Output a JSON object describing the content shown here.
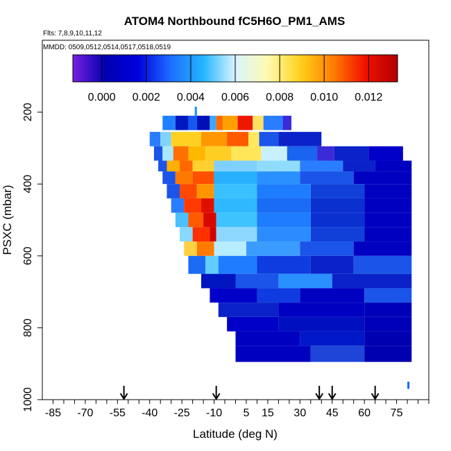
{
  "chart_data": {
    "type": "heatmap",
    "title": "ATOM4 Northbound fC5H6O_PM1_AMS",
    "subtitle_flights": "Flts: 7,8,9,10,11,12",
    "subtitle_dates": "MMDD: 0509,0512,0514,0517,0518,0519",
    "xlabel": "Latitude (deg N)",
    "ylabel": "PSXC (mbar)",
    "xlim": [
      -90,
      90
    ],
    "ylim": [
      1000,
      0
    ],
    "x_ticks": [
      "-85",
      "-70",
      "-55",
      "-40",
      "-25",
      "-10",
      "5",
      "15",
      "30",
      "45",
      "60",
      "75"
    ],
    "x_tick_values": [
      -85,
      -70,
      -55,
      -40,
      -25,
      -10,
      5,
      15,
      30,
      45,
      60,
      75
    ],
    "y_ticks": [
      "200",
      "400",
      "600",
      "800",
      "1000"
    ],
    "y_tick_values": [
      200,
      400,
      600,
      800,
      1000
    ],
    "colorbar": {
      "range": [
        -0.0013,
        0.0133
      ],
      "ticks": [
        "0.000",
        "0.002",
        "0.004",
        "0.006",
        "0.008",
        "0.010",
        "0.012"
      ],
      "tick_values": [
        0.0,
        0.002,
        0.004,
        0.006,
        0.008,
        0.01,
        0.012
      ],
      "gradient": [
        "#7a1fe0",
        "#0000b0",
        "#0000dd",
        "#1e6cff",
        "#22b4ff",
        "#d8f4ff",
        "#fffbb0",
        "#ffd21e",
        "#ff7f00",
        "#f21000",
        "#b00000"
      ]
    },
    "arrows_latitude": [
      -52,
      -9,
      39,
      45,
      65
    ],
    "bands": [
      {
        "p": [
          185,
          210
        ],
        "segments": [
          {
            "x0": -19,
            "x1": -18,
            "c": "#1e90ff"
          }
        ]
      },
      {
        "p": [
          210,
          250
        ],
        "segments": [
          {
            "x0": -34,
            "x1": -28,
            "c": "#2080ff"
          },
          {
            "x0": -28,
            "x1": -22,
            "c": "#0018c0"
          },
          {
            "x0": -22,
            "x1": -18,
            "c": "#1458f0"
          },
          {
            "x0": -18,
            "x1": -12,
            "c": "#0010b8"
          },
          {
            "x0": -12,
            "x1": -9,
            "c": "#3fa6ff"
          },
          {
            "x0": -9,
            "x1": -6,
            "c": "#ff6a00"
          },
          {
            "x0": -6,
            "x1": 1,
            "c": "#ffa000"
          },
          {
            "x0": 1,
            "x1": 8,
            "c": "#ee1800"
          },
          {
            "x0": 8,
            "x1": 13,
            "c": "#ffe060"
          },
          {
            "x0": 13,
            "x1": 22,
            "c": "#2a7dff"
          },
          {
            "x0": 22,
            "x1": 26,
            "c": "#3a2ad8"
          }
        ]
      },
      {
        "p": [
          255,
          295
        ],
        "segments": [
          {
            "x0": -40,
            "x1": -35,
            "c": "#2a7dff"
          },
          {
            "x0": -35,
            "x1": -30,
            "c": "#7fd4ff"
          },
          {
            "x0": -30,
            "x1": -16,
            "c": "#ffd021"
          },
          {
            "x0": -16,
            "x1": -4,
            "c": "#ff9800"
          },
          {
            "x0": -4,
            "x1": 6,
            "c": "#ff5a00"
          },
          {
            "x0": 6,
            "x1": 11,
            "c": "#ffe860"
          },
          {
            "x0": 11,
            "x1": 20,
            "c": "#1a54e8"
          },
          {
            "x0": 20,
            "x1": 40,
            "c": "#0a22c8"
          }
        ]
      },
      {
        "p": [
          295,
          335
        ],
        "segments": [
          {
            "x0": -38,
            "x1": -34,
            "c": "#1a54e8"
          },
          {
            "x0": -34,
            "x1": -29,
            "c": "#a9e8ff"
          },
          {
            "x0": -29,
            "x1": -22,
            "c": "#ff7000"
          },
          {
            "x0": -22,
            "x1": -14,
            "c": "#ffb800"
          },
          {
            "x0": -14,
            "x1": -2,
            "c": "#ffce25"
          },
          {
            "x0": -2,
            "x1": 12,
            "c": "#ffe558"
          },
          {
            "x0": 12,
            "x1": 24,
            "c": "#c8f0ff"
          },
          {
            "x0": 24,
            "x1": 38,
            "c": "#1a64f0"
          },
          {
            "x0": 38,
            "x1": 46,
            "c": "#3a2ad8"
          },
          {
            "x0": 46,
            "x1": 62,
            "c": "#0a22c8"
          },
          {
            "x0": 62,
            "x1": 78,
            "c": "#0000c8"
          }
        ]
      },
      {
        "p": [
          335,
          365
        ],
        "segments": [
          {
            "x0": -36,
            "x1": -32,
            "c": "#1a54e8"
          },
          {
            "x0": -32,
            "x1": -26,
            "c": "#ffb000"
          },
          {
            "x0": -26,
            "x1": -20,
            "c": "#ff6800"
          },
          {
            "x0": -20,
            "x1": -10,
            "c": "#ffd030"
          },
          {
            "x0": -10,
            "x1": 10,
            "c": "#7fd0ff"
          },
          {
            "x0": 10,
            "x1": 30,
            "c": "#8fdcff"
          },
          {
            "x0": 30,
            "x1": 50,
            "c": "#2a7dff"
          },
          {
            "x0": 50,
            "x1": 65,
            "c": "#0a22c8"
          },
          {
            "x0": 65,
            "x1": 82,
            "c": "#0000c0"
          }
        ]
      },
      {
        "p": [
          365,
          400
        ],
        "segments": [
          {
            "x0": -34,
            "x1": -28,
            "c": "#1a54e8"
          },
          {
            "x0": -28,
            "x1": -20,
            "c": "#ff7800"
          },
          {
            "x0": -20,
            "x1": -10,
            "c": "#ff5000"
          },
          {
            "x0": -10,
            "x1": 10,
            "c": "#28b0ff"
          },
          {
            "x0": 10,
            "x1": 30,
            "c": "#2a90ff"
          },
          {
            "x0": 30,
            "x1": 55,
            "c": "#1a54e8"
          },
          {
            "x0": 55,
            "x1": 82,
            "c": "#0000c0"
          }
        ]
      },
      {
        "p": [
          400,
          440
        ],
        "segments": [
          {
            "x0": -32,
            "x1": -26,
            "c": "#1a54e8"
          },
          {
            "x0": -26,
            "x1": -18,
            "c": "#ff4800"
          },
          {
            "x0": -18,
            "x1": -10,
            "c": "#ff9400"
          },
          {
            "x0": -10,
            "x1": 10,
            "c": "#38c0ff"
          },
          {
            "x0": 10,
            "x1": 35,
            "c": "#1e7cff"
          },
          {
            "x0": 35,
            "x1": 60,
            "c": "#1040d8"
          },
          {
            "x0": 60,
            "x1": 82,
            "c": "#0000c0"
          }
        ]
      },
      {
        "p": [
          440,
          480
        ],
        "segments": [
          {
            "x0": -30,
            "x1": -24,
            "c": "#2a7dff"
          },
          {
            "x0": -24,
            "x1": -16,
            "c": "#ff3a00"
          },
          {
            "x0": -16,
            "x1": -10,
            "c": "#e01000"
          },
          {
            "x0": -10,
            "x1": 10,
            "c": "#30b8ff"
          },
          {
            "x0": 10,
            "x1": 35,
            "c": "#1a6cf4"
          },
          {
            "x0": 35,
            "x1": 60,
            "c": "#0a30d0"
          },
          {
            "x0": 60,
            "x1": 82,
            "c": "#0000c0"
          }
        ]
      },
      {
        "p": [
          480,
          520
        ],
        "segments": [
          {
            "x0": -28,
            "x1": -22,
            "c": "#4ac0ff"
          },
          {
            "x0": -22,
            "x1": -15,
            "c": "#ff5a00"
          },
          {
            "x0": -15,
            "x1": -9,
            "c": "#d80800"
          },
          {
            "x0": -9,
            "x1": 10,
            "c": "#40c4ff"
          },
          {
            "x0": 10,
            "x1": 35,
            "c": "#1e7cff"
          },
          {
            "x0": 35,
            "x1": 60,
            "c": "#0a30d0"
          },
          {
            "x0": 60,
            "x1": 82,
            "c": "#0000c0"
          }
        ]
      },
      {
        "p": [
          520,
          560
        ],
        "segments": [
          {
            "x0": -26,
            "x1": -20,
            "c": "#88d8ff"
          },
          {
            "x0": -20,
            "x1": -12,
            "c": "#ff3000"
          },
          {
            "x0": -12,
            "x1": -9,
            "c": "#d00000"
          },
          {
            "x0": -9,
            "x1": 10,
            "c": "#8ed8ff"
          },
          {
            "x0": 10,
            "x1": 35,
            "c": "#2a8cff"
          },
          {
            "x0": 35,
            "x1": 60,
            "c": "#1040d8"
          },
          {
            "x0": 60,
            "x1": 82,
            "c": "#0000c0"
          }
        ]
      },
      {
        "p": [
          560,
          600
        ],
        "segments": [
          {
            "x0": -24,
            "x1": -18,
            "c": "#ffd040"
          },
          {
            "x0": -18,
            "x1": -10,
            "c": "#ff7a00"
          },
          {
            "x0": -10,
            "x1": 5,
            "c": "#b8ecff"
          },
          {
            "x0": 5,
            "x1": 30,
            "c": "#3a9cff"
          },
          {
            "x0": 30,
            "x1": 55,
            "c": "#1a54e8"
          },
          {
            "x0": 55,
            "x1": 82,
            "c": "#0000c0"
          }
        ]
      },
      {
        "p": [
          600,
          650
        ],
        "segments": [
          {
            "x0": -22,
            "x1": -14,
            "c": "#1a6cf4"
          },
          {
            "x0": -14,
            "x1": -8,
            "c": "#60ccff"
          },
          {
            "x0": -8,
            "x1": 10,
            "c": "#1e7cff"
          },
          {
            "x0": 10,
            "x1": 35,
            "c": "#0e3ce0"
          },
          {
            "x0": 35,
            "x1": 55,
            "c": "#0a22c8"
          },
          {
            "x0": 55,
            "x1": 82,
            "c": "#1a54e8"
          }
        ]
      },
      {
        "p": [
          650,
          690
        ],
        "segments": [
          {
            "x0": -16,
            "x1": 0,
            "c": "#0014c0"
          },
          {
            "x0": 0,
            "x1": 20,
            "c": "#1a54e8"
          },
          {
            "x0": 20,
            "x1": 45,
            "c": "#2a90ff"
          },
          {
            "x0": 45,
            "x1": 82,
            "c": "#0a22c8"
          }
        ]
      },
      {
        "p": [
          690,
          730
        ],
        "segments": [
          {
            "x0": -12,
            "x1": 10,
            "c": "#0000c8"
          },
          {
            "x0": 10,
            "x1": 30,
            "c": "#0e3ce0"
          },
          {
            "x0": 30,
            "x1": 60,
            "c": "#0000c0"
          },
          {
            "x0": 60,
            "x1": 82,
            "c": "#1a54e8"
          }
        ]
      },
      {
        "p": [
          730,
          770
        ],
        "segments": [
          {
            "x0": -8,
            "x1": 20,
            "c": "#0a22c8"
          },
          {
            "x0": 20,
            "x1": 60,
            "c": "#0000c0"
          },
          {
            "x0": 60,
            "x1": 82,
            "c": "#0000b8"
          }
        ]
      },
      {
        "p": [
          770,
          810
        ],
        "segments": [
          {
            "x0": -4,
            "x1": 20,
            "c": "#0000c8"
          },
          {
            "x0": 20,
            "x1": 60,
            "c": "#0010c0"
          },
          {
            "x0": 60,
            "x1": 82,
            "c": "#0000b8"
          }
        ]
      },
      {
        "p": [
          810,
          850
        ],
        "segments": [
          {
            "x0": 0,
            "x1": 30,
            "c": "#0000c0"
          },
          {
            "x0": 30,
            "x1": 60,
            "c": "#0018c8"
          },
          {
            "x0": 60,
            "x1": 82,
            "c": "#0000b0"
          }
        ]
      },
      {
        "p": [
          850,
          895
        ],
        "segments": [
          {
            "x0": 0,
            "x1": 35,
            "c": "#0000c0"
          },
          {
            "x0": 35,
            "x1": 60,
            "c": "#1e44d8"
          },
          {
            "x0": 60,
            "x1": 82,
            "c": "#0000b0"
          }
        ]
      },
      {
        "p": [
          950,
          970
        ],
        "segments": [
          {
            "x0": 80,
            "x1": 81,
            "c": "#1a6cf4"
          }
        ]
      }
    ]
  }
}
